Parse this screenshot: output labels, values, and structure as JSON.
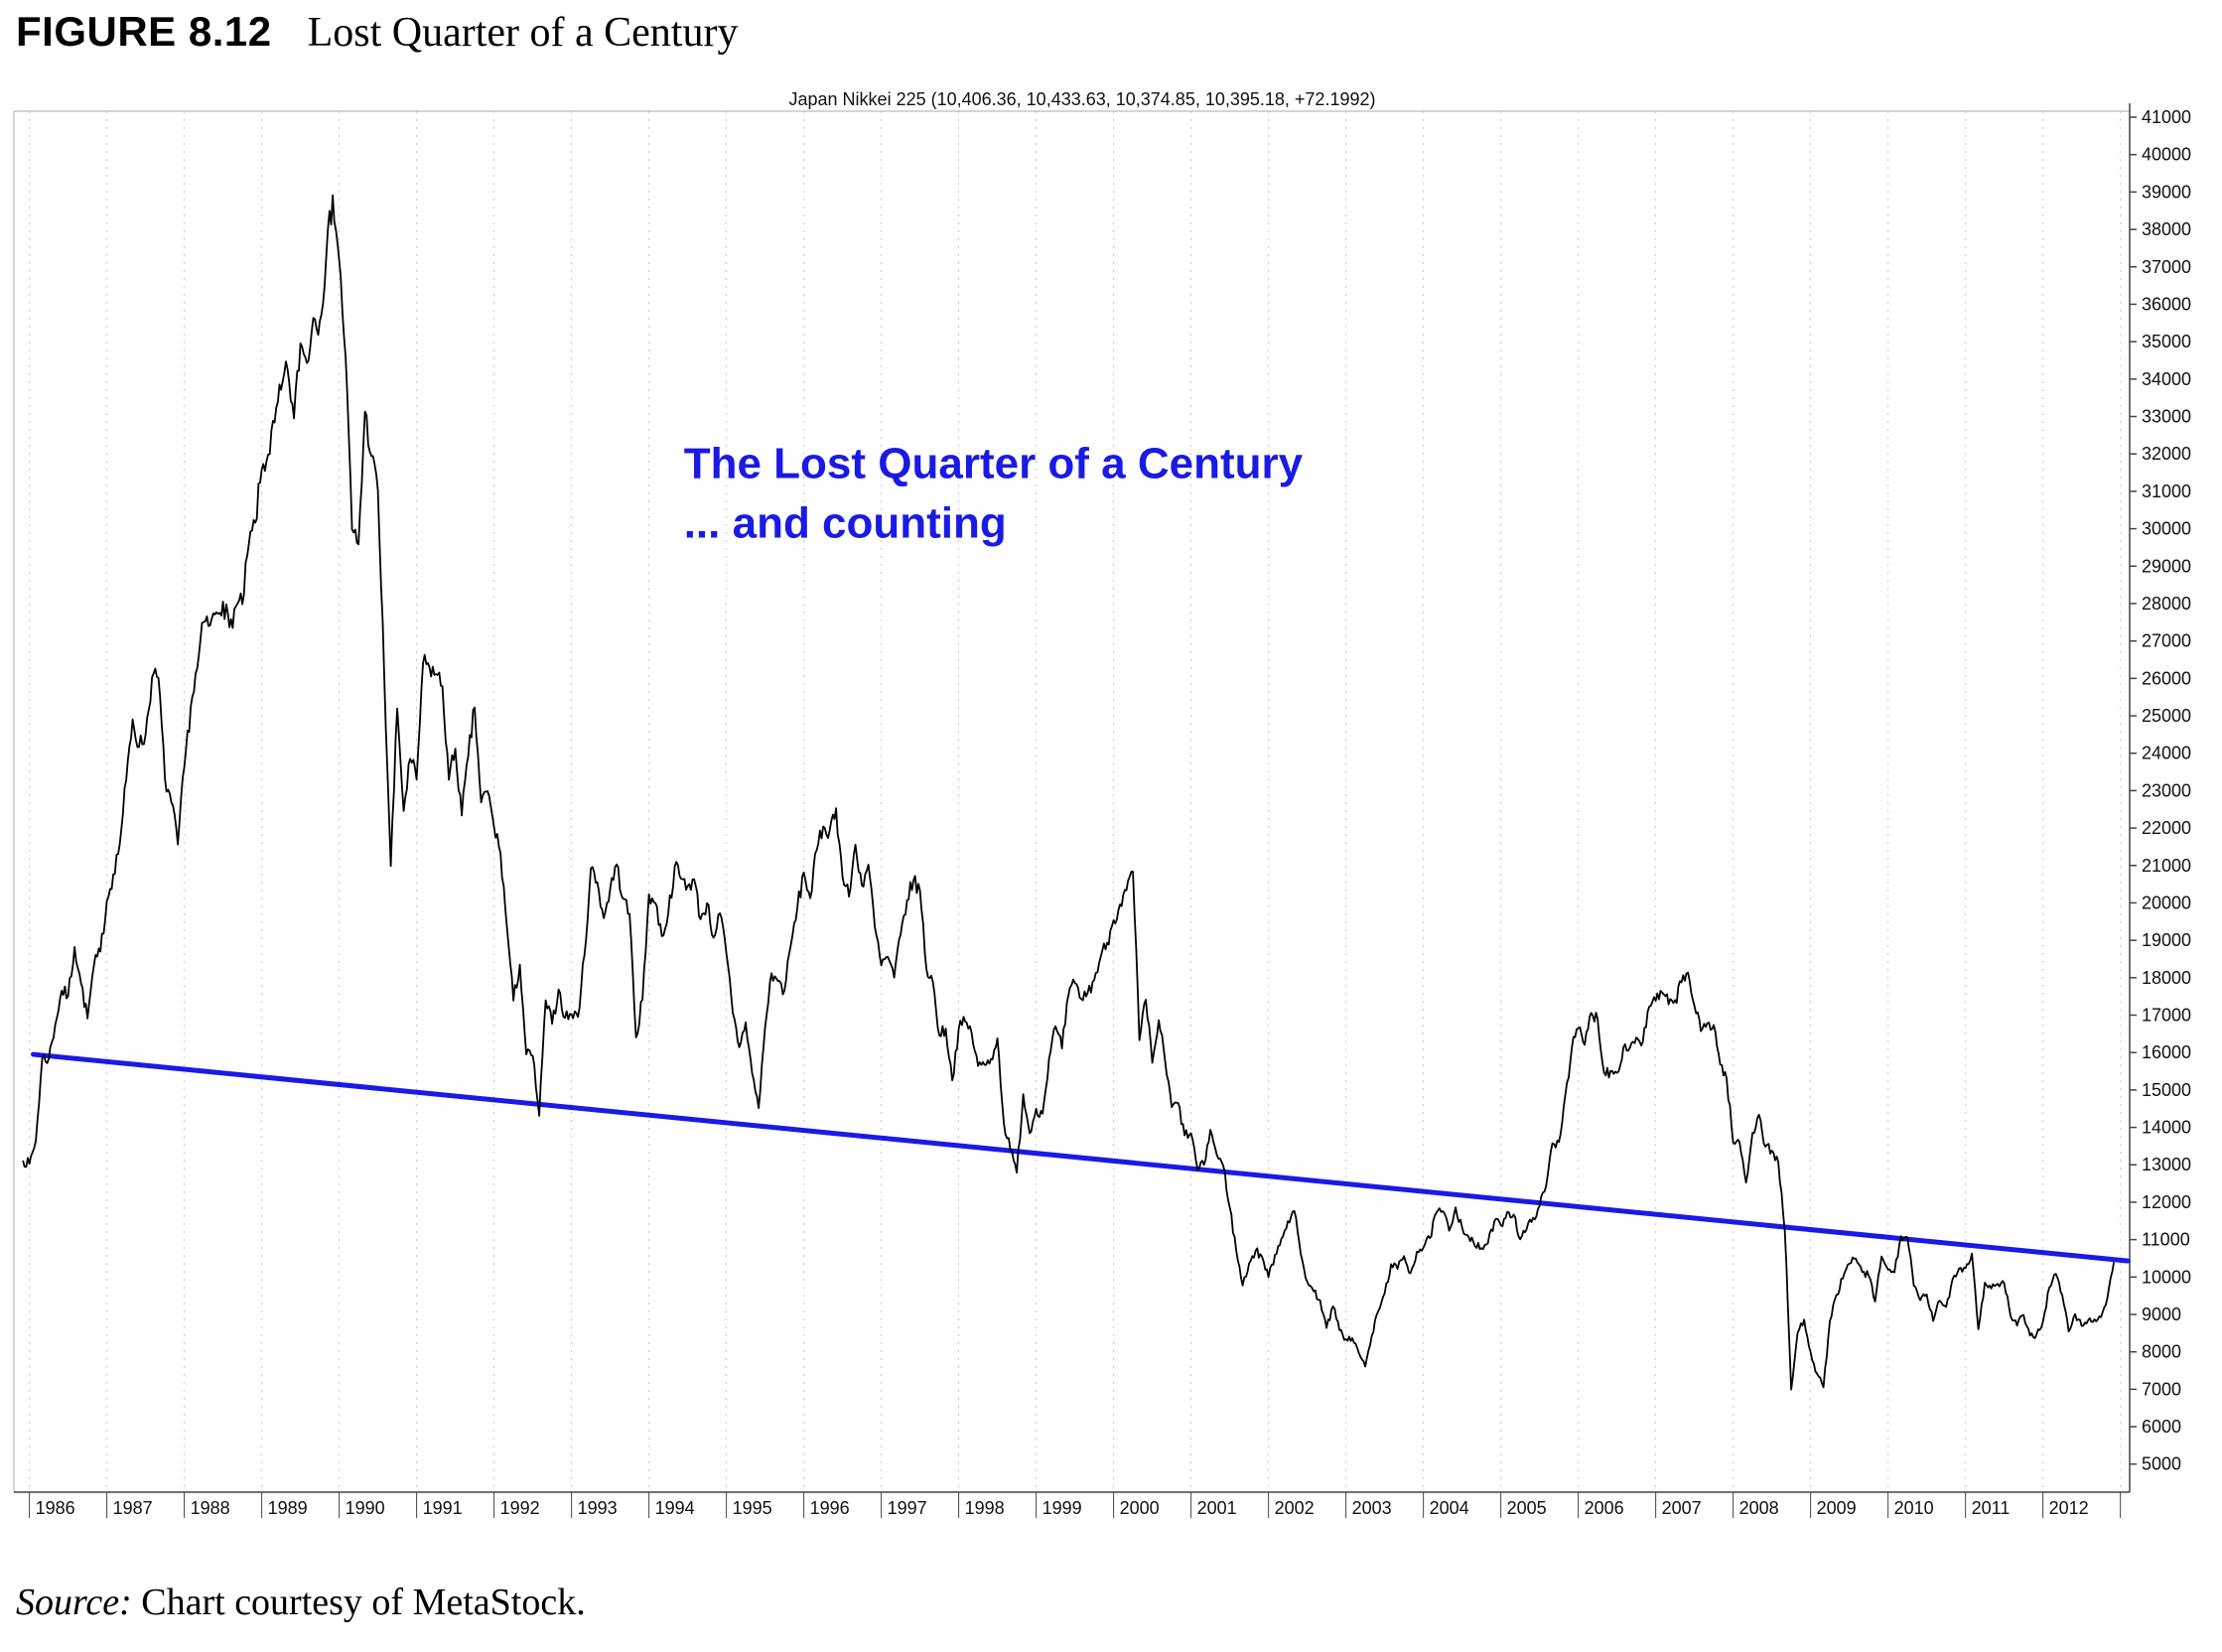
{
  "figure": {
    "label": "FIGURE 8.12",
    "title": "Lost Quarter of a Century"
  },
  "source": {
    "prefix": "Source:",
    "text": "Chart courtesy of MetaStock."
  },
  "chart_data": {
    "type": "line",
    "title": "Japan Nikkei 225 (10,406.36, 10,433.63, 10,374.85, 10,395.18, +72.1992)",
    "x_range": [
      1985.8,
      2013.12
    ],
    "y_range": [
      4250,
      41160
    ],
    "grid": "vertical-dotted",
    "y_axis_side": "right",
    "legend_position": "none",
    "x_ticks": [
      "1986",
      "1987",
      "1988",
      "1989",
      "1990",
      "1991",
      "1992",
      "1993",
      "1994",
      "1995",
      "1996",
      "1997",
      "1998",
      "1999",
      "2000",
      "2001",
      "2002",
      "2003",
      "2004",
      "2005",
      "2006",
      "2007",
      "2008",
      "2009",
      "2010",
      "2011",
      "2012"
    ],
    "y_ticks": [
      5000,
      6000,
      7000,
      8000,
      9000,
      10000,
      11000,
      12000,
      13000,
      14000,
      15000,
      16000,
      17000,
      18000,
      19000,
      20000,
      21000,
      22000,
      23000,
      24000,
      25000,
      26000,
      27000,
      28000,
      29000,
      30000,
      31000,
      32000,
      33000,
      34000,
      35000,
      36000,
      37000,
      38000,
      39000,
      40000,
      41000
    ],
    "series": [
      {
        "name": "Japan Nikkei 225",
        "color": "#000000",
        "start_year": 1985.9167,
        "interval": "monthly",
        "values": [
          13113,
          13024,
          13641,
          15860,
          15826,
          16739,
          17654,
          17510,
          18821,
          17853,
          16911,
          18325,
          18701,
          20048,
          20766,
          21567,
          23275,
          24902,
          24176,
          24488,
          26029,
          26010,
          23328,
          22687,
          21564,
          23622,
          25243,
          26260,
          27509,
          27417,
          27769,
          28052,
          27366,
          27924,
          27983,
          29579,
          30159,
          31581,
          31986,
          32839,
          33713,
          34267,
          32949,
          34954,
          34431,
          35637,
          35549,
          37269,
          38916,
          37189,
          34592,
          29980,
          29585,
          33131,
          31940,
          31036,
          25978,
          20984,
          25194,
          22455,
          23849,
          23293,
          26409,
          26292,
          26111,
          25790,
          23291,
          24121,
          22336,
          23916,
          25222,
          22687,
          22984,
          22023,
          21339,
          19346,
          17391,
          18348,
          15952,
          15910,
          14309,
          17399,
          16767,
          17684,
          16925,
          17024,
          16953,
          18591,
          20919,
          20552,
          19590,
          20380,
          21027,
          20106,
          19703,
          16406,
          17417,
          20229,
          19997,
          19112,
          19725,
          20974,
          20644,
          20449,
          20629,
          19564,
          19990,
          19070,
          19723,
          18650,
          17053,
          16140,
          16807,
          15437,
          14517,
          16677,
          18117,
          17913,
          17655,
          18880,
          19868,
          20813,
          20125,
          21407,
          22041,
          21928,
          22531,
          20693,
          20167,
          21556,
          20467,
          21020,
          19361,
          18330,
          18557,
          18003,
          19151,
          20069,
          20605,
          20331,
          18229,
          17888,
          16459,
          16636,
          15259,
          16628,
          16832,
          16527,
          15641,
          15671,
          15830,
          16379,
          14108,
          13406,
          12788,
          14884,
          13842,
          14499,
          14368,
          15837,
          16702,
          16112,
          17530,
          17861,
          17431,
          17606,
          17942,
          18558,
          18934,
          19540,
          19959,
          20337,
          20833,
          16332,
          17411,
          15727,
          16861,
          15747,
          14540,
          14649,
          13786,
          13844,
          12884,
          12999,
          13934,
          13262,
          12969,
          11861,
          10714,
          9775,
          10366,
          10697,
          10543,
          9998,
          10588,
          11025,
          11492,
          11764,
          10622,
          9878,
          9619,
          9383,
          8640,
          9216,
          8579,
          8339,
          8363,
          7973,
          7607,
          8425,
          9083,
          9563,
          10343,
          10219,
          10559,
          10100,
          10677,
          10784,
          11041,
          11715,
          11762,
          11236,
          11859,
          11326,
          11082,
          10824,
          10772,
          10899,
          11489,
          11388,
          11740,
          11669,
          11009,
          11277,
          11584,
          11900,
          12414,
          13574,
          13607,
          14872,
          16111,
          16649,
          16205,
          17060,
          16906,
          15467,
          15505,
          15457,
          16141,
          16128,
          16399,
          16274,
          17226,
          17383,
          17604,
          17288,
          17400,
          17876,
          18138,
          17249,
          16569,
          16786,
          16738,
          15681,
          15308,
          13592,
          13603,
          12526,
          13850,
          14339,
          13481,
          13377,
          13073,
          11260,
          6995,
          8512,
          8860,
          7994,
          7416,
          7055,
          8828,
          9523,
          9958,
          10357,
          10493,
          10133,
          10035,
          9346,
          10546,
          10198,
          10126,
          11090,
          11057,
          9769,
          9383,
          9537,
          8824,
          9369,
          9202,
          9937,
          10229,
          10237,
          10624,
          8605,
          9850,
          9694,
          9816,
          9833,
          8955,
          8700,
          8988,
          8435,
          8455,
          8803,
          9723,
          10084,
          9521,
          8543,
          9007,
          8695,
          8840,
          8870,
          8928,
          9446,
          10395
        ]
      }
    ],
    "trendline": {
      "color": "#1a1ae6",
      "x1": 1986.05,
      "y1": 15950,
      "x2": 2013.1,
      "y2": 10430
    },
    "annotation": {
      "lines": [
        "The Lost Quarter of a Century",
        "... and counting"
      ],
      "color": "#1a1ae6",
      "x": 1994.45,
      "baselines": [
        31350,
        29760
      ]
    }
  }
}
